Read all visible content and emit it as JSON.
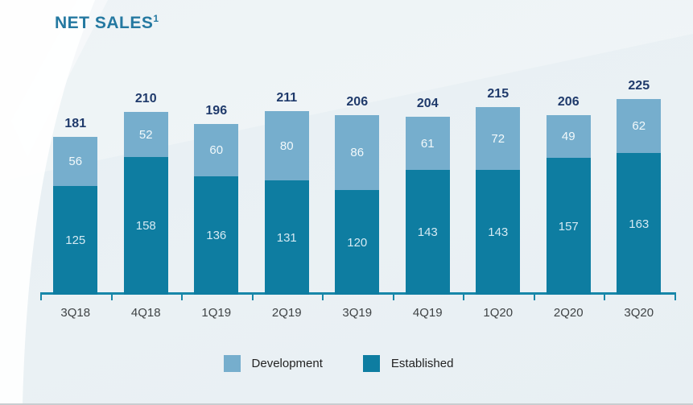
{
  "title": {
    "text": "NET SALES",
    "superscript": "1"
  },
  "chart_data": {
    "type": "bar",
    "stacked": true,
    "title": "NET SALES¹",
    "categories": [
      "3Q18",
      "4Q18",
      "1Q19",
      "2Q19",
      "3Q19",
      "4Q19",
      "1Q20",
      "2Q20",
      "3Q20"
    ],
    "series": [
      {
        "name": "Development",
        "color": "#76aecd",
        "label_color": "#f2f9fb",
        "values": [
          56,
          52,
          60,
          80,
          86,
          61,
          72,
          49,
          62
        ]
      },
      {
        "name": "Established",
        "color": "#0e7da1",
        "label_color": "#d5eaf3",
        "values": [
          125,
          158,
          136,
          131,
          120,
          143,
          143,
          157,
          163
        ]
      }
    ],
    "totals": [
      181,
      210,
      196,
      211,
      206,
      204,
      215,
      206,
      225
    ],
    "total_label_color": "#1f3a6b",
    "axis_color": "#1787a9",
    "x_label_color": "#3f4345",
    "ylim": [
      0,
      240
    ],
    "grid": false,
    "legend_position": "bottom",
    "value_labels_shown": true
  },
  "legend": {
    "items": [
      {
        "label": "Development",
        "color": "#76aecd"
      },
      {
        "label": "Established",
        "color": "#0e7da1"
      }
    ]
  },
  "background": {
    "base_color": "#e9eff3",
    "accent_shape_color": "#ffffff"
  }
}
